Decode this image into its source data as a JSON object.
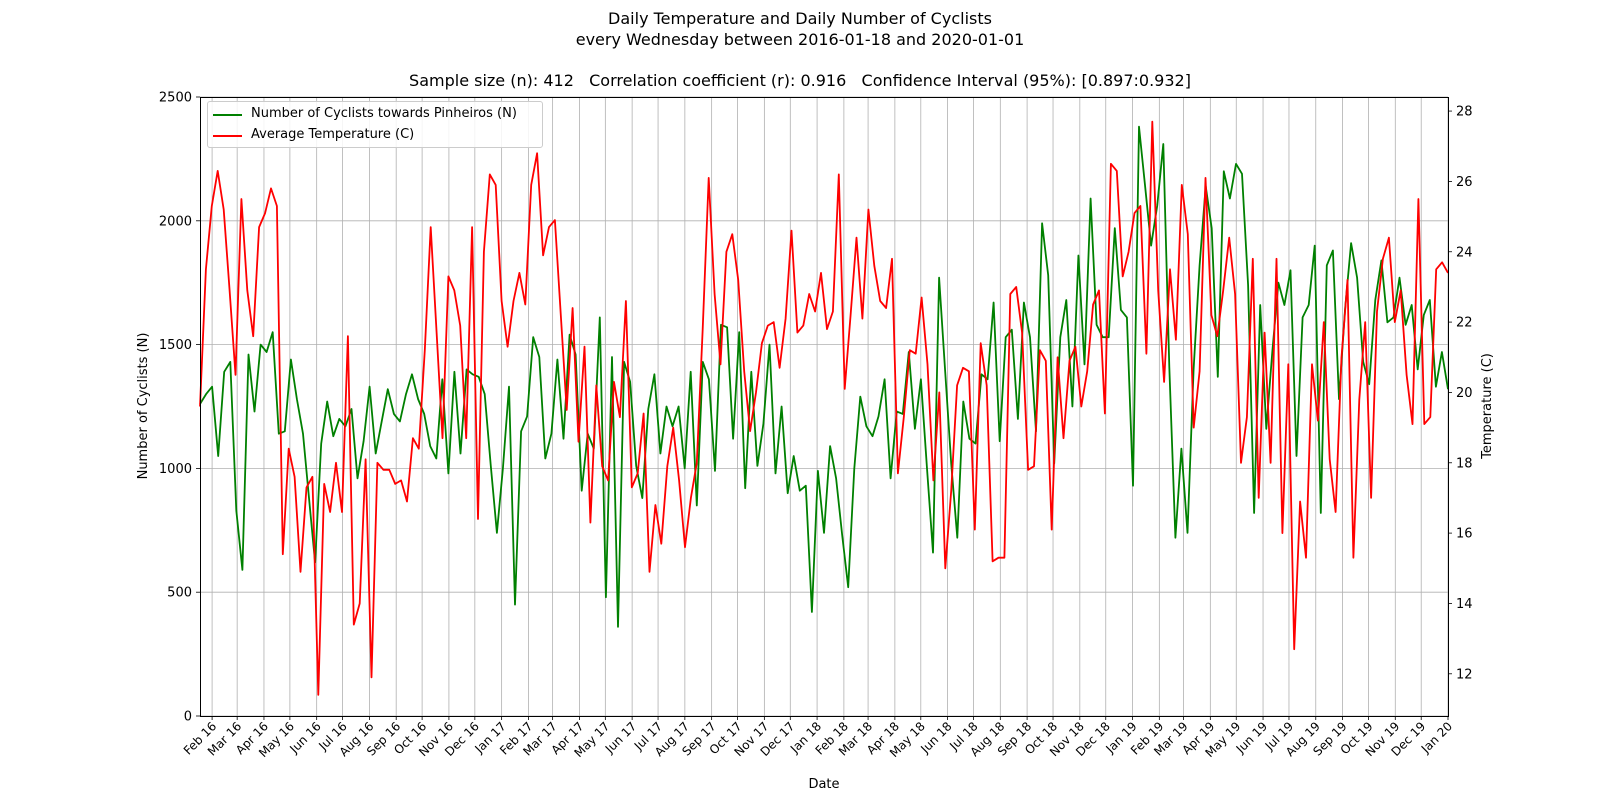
{
  "chart_data": {
    "type": "line",
    "title": "Daily Temperature and Daily Number of Cyclists",
    "subtitle": "every Wednesday between 2016-01-18 and 2020-01-01",
    "stats_line": "Sample size (n): 412   Correlation coefficient (r): 0.916   Confidence Interval (95%): [0.897:0.932]",
    "xlabel": "Date",
    "ylabel_left": "Number of Cyclists (N)",
    "ylabel_right": "Temperature (C)",
    "xlim": [
      "2016-01-18",
      "2020-01-01"
    ],
    "ylim_left": [
      0,
      2500
    ],
    "ylim_right": [
      10.8,
      28.4
    ],
    "grid": true,
    "legend_position": "upper-left",
    "x_tick_labels": [
      "Feb 16",
      "Mar 16",
      "Apr 16",
      "May 16",
      "Jun 16",
      "Jul 16",
      "Aug 16",
      "Sep 16",
      "Oct 16",
      "Nov 16",
      "Dec 16",
      "Jan 17",
      "Feb 17",
      "Mar 17",
      "Apr 17",
      "May 17",
      "Jun 17",
      "Jul 17",
      "Aug 17",
      "Sep 17",
      "Oct 17",
      "Nov 17",
      "Dec 17",
      "Jan 18",
      "Feb 18",
      "Mar 18",
      "Apr 18",
      "May 18",
      "Jun 18",
      "Jul 18",
      "Aug 18",
      "Sep 18",
      "Oct 18",
      "Nov 18",
      "Dec 18",
      "Jan 19",
      "Feb 19",
      "Mar 19",
      "Apr 19",
      "May 19",
      "Jun 19",
      "Jul 19",
      "Aug 19",
      "Sep 19",
      "Oct 19",
      "Nov 19",
      "Dec 19",
      "Jan 20"
    ],
    "y_left_ticks": [
      0,
      500,
      1000,
      1500,
      2000,
      2500
    ],
    "y_right_ticks": [
      12,
      14,
      16,
      18,
      20,
      22,
      24,
      26,
      28
    ],
    "series": [
      {
        "name": "Number of Cyclists towards Pinheiros (N)",
        "axis": "left",
        "color": "#008000",
        "values": [
          1260,
          1300,
          1330,
          1050,
          1390,
          1430,
          830,
          590,
          1460,
          1230,
          1500,
          1470,
          1550,
          1140,
          1150,
          1440,
          1280,
          1140,
          880,
          620,
          1100,
          1270,
          1130,
          1200,
          1170,
          1240,
          960,
          1110,
          1330,
          1060,
          1190,
          1320,
          1220,
          1190,
          1300,
          1380,
          1280,
          1220,
          1090,
          1040,
          1360,
          980,
          1390,
          1060,
          1400,
          1380,
          1370,
          1300,
          1010,
          740,
          1000,
          1330,
          450,
          1150,
          1210,
          1530,
          1450,
          1040,
          1140,
          1440,
          1120,
          1540,
          1460,
          910,
          1140,
          1080,
          1610,
          480,
          1450,
          360,
          1430,
          1350,
          1010,
          880,
          1240,
          1380,
          1060,
          1250,
          1170,
          1250,
          1000,
          1390,
          850,
          1430,
          1360,
          990,
          1580,
          1570,
          1120,
          1550,
          920,
          1390,
          1010,
          1180,
          1500,
          980,
          1250,
          900,
          1050,
          910,
          930,
          420,
          990,
          740,
          1090,
          960,
          730,
          520,
          1000,
          1290,
          1170,
          1130,
          1210,
          1360,
          960,
          1230,
          1220,
          1470,
          1160,
          1360,
          1000,
          660,
          1770,
          1390,
          1020,
          720,
          1270,
          1120,
          1100,
          1380,
          1360,
          1670,
          1110,
          1530,
          1560,
          1200,
          1670,
          1530,
          1150,
          1990,
          1780,
          1020,
          1530,
          1680,
          1250,
          1860,
          1420,
          2090,
          1580,
          1530,
          1530,
          1970,
          1640,
          1610,
          930,
          2380,
          2140,
          1900,
          2060,
          2310,
          1410,
          720,
          1080,
          740,
          1400,
          1820,
          2140,
          1970,
          1370,
          2200,
          2090,
          2230,
          2190,
          1740,
          820,
          1660,
          1160,
          1470,
          1750,
          1660,
          1800,
          1050,
          1610,
          1660,
          1900,
          820,
          1820,
          1880,
          1280,
          1640,
          1910,
          1770,
          1430,
          1340,
          1680,
          1840,
          1590,
          1610,
          1770,
          1580,
          1660,
          1400,
          1620,
          1680,
          1330,
          1470,
          1320
        ]
      },
      {
        "name": "Average Temperature (C)",
        "axis": "right",
        "color": "#ff0000",
        "values": [
          19.6,
          23.5,
          25.3,
          26.3,
          25.2,
          22.9,
          20.5,
          25.5,
          22.9,
          21.6,
          24.7,
          25.1,
          25.8,
          25.3,
          15.4,
          18.4,
          17.6,
          14.9,
          17.3,
          17.6,
          11.4,
          17.4,
          16.6,
          18.0,
          16.6,
          21.6,
          13.4,
          14.0,
          18.1,
          11.9,
          18.0,
          17.8,
          17.8,
          17.4,
          17.5,
          16.9,
          18.7,
          18.4,
          21.2,
          24.7,
          21.7,
          18.7,
          23.3,
          22.9,
          21.9,
          18.7,
          24.7,
          16.4,
          24.0,
          26.2,
          25.9,
          22.6,
          21.3,
          22.6,
          23.4,
          22.5,
          25.9,
          26.8,
          23.9,
          24.7,
          24.9,
          22.2,
          19.5,
          22.4,
          18.6,
          21.3,
          16.3,
          20.2,
          17.9,
          17.5,
          20.3,
          19.3,
          22.6,
          17.3,
          17.7,
          19.4,
          14.9,
          16.8,
          15.7,
          17.9,
          19.0,
          17.5,
          15.6,
          17.0,
          18.0,
          21.8,
          26.1,
          22.8,
          20.8,
          24.0,
          24.5,
          23.2,
          20.6,
          18.9,
          20.0,
          21.4,
          21.9,
          22.0,
          20.7,
          22.1,
          24.6,
          21.7,
          21.9,
          22.8,
          22.3,
          23.4,
          21.8,
          22.3,
          26.2,
          20.1,
          22.2,
          24.4,
          22.1,
          25.2,
          23.6,
          22.6,
          22.4,
          23.8,
          17.7,
          19.3,
          21.2,
          21.1,
          22.7,
          20.8,
          17.5,
          20.0,
          15.0,
          17.2,
          20.2,
          20.7,
          20.6,
          16.1,
          21.4,
          20.2,
          15.2,
          15.3,
          15.3,
          22.8,
          23.0,
          21.7,
          17.8,
          17.9,
          21.2,
          20.9,
          16.1,
          21.0,
          18.7,
          20.9,
          21.3,
          19.6,
          20.6,
          22.5,
          22.9,
          19.4,
          26.5,
          26.3,
          23.3,
          24.0,
          25.1,
          25.3,
          21.1,
          27.7,
          22.9,
          20.3,
          23.5,
          21.5,
          25.9,
          24.5,
          19.0,
          20.6,
          26.1,
          22.2,
          21.6,
          22.9,
          24.4,
          22.8,
          18.0,
          19.3,
          23.8,
          17.0,
          21.7,
          18.0,
          23.8,
          16.0,
          20.8,
          12.7,
          16.9,
          15.3,
          20.8,
          19.2,
          22.0,
          18.1,
          16.6,
          21.0,
          23.2,
          15.3,
          19.8,
          22.0,
          17.0,
          22.3,
          23.8,
          24.4,
          22.0,
          22.9,
          20.5,
          19.1,
          25.5,
          19.1,
          19.3,
          23.5,
          23.7,
          23.4
        ]
      }
    ]
  }
}
